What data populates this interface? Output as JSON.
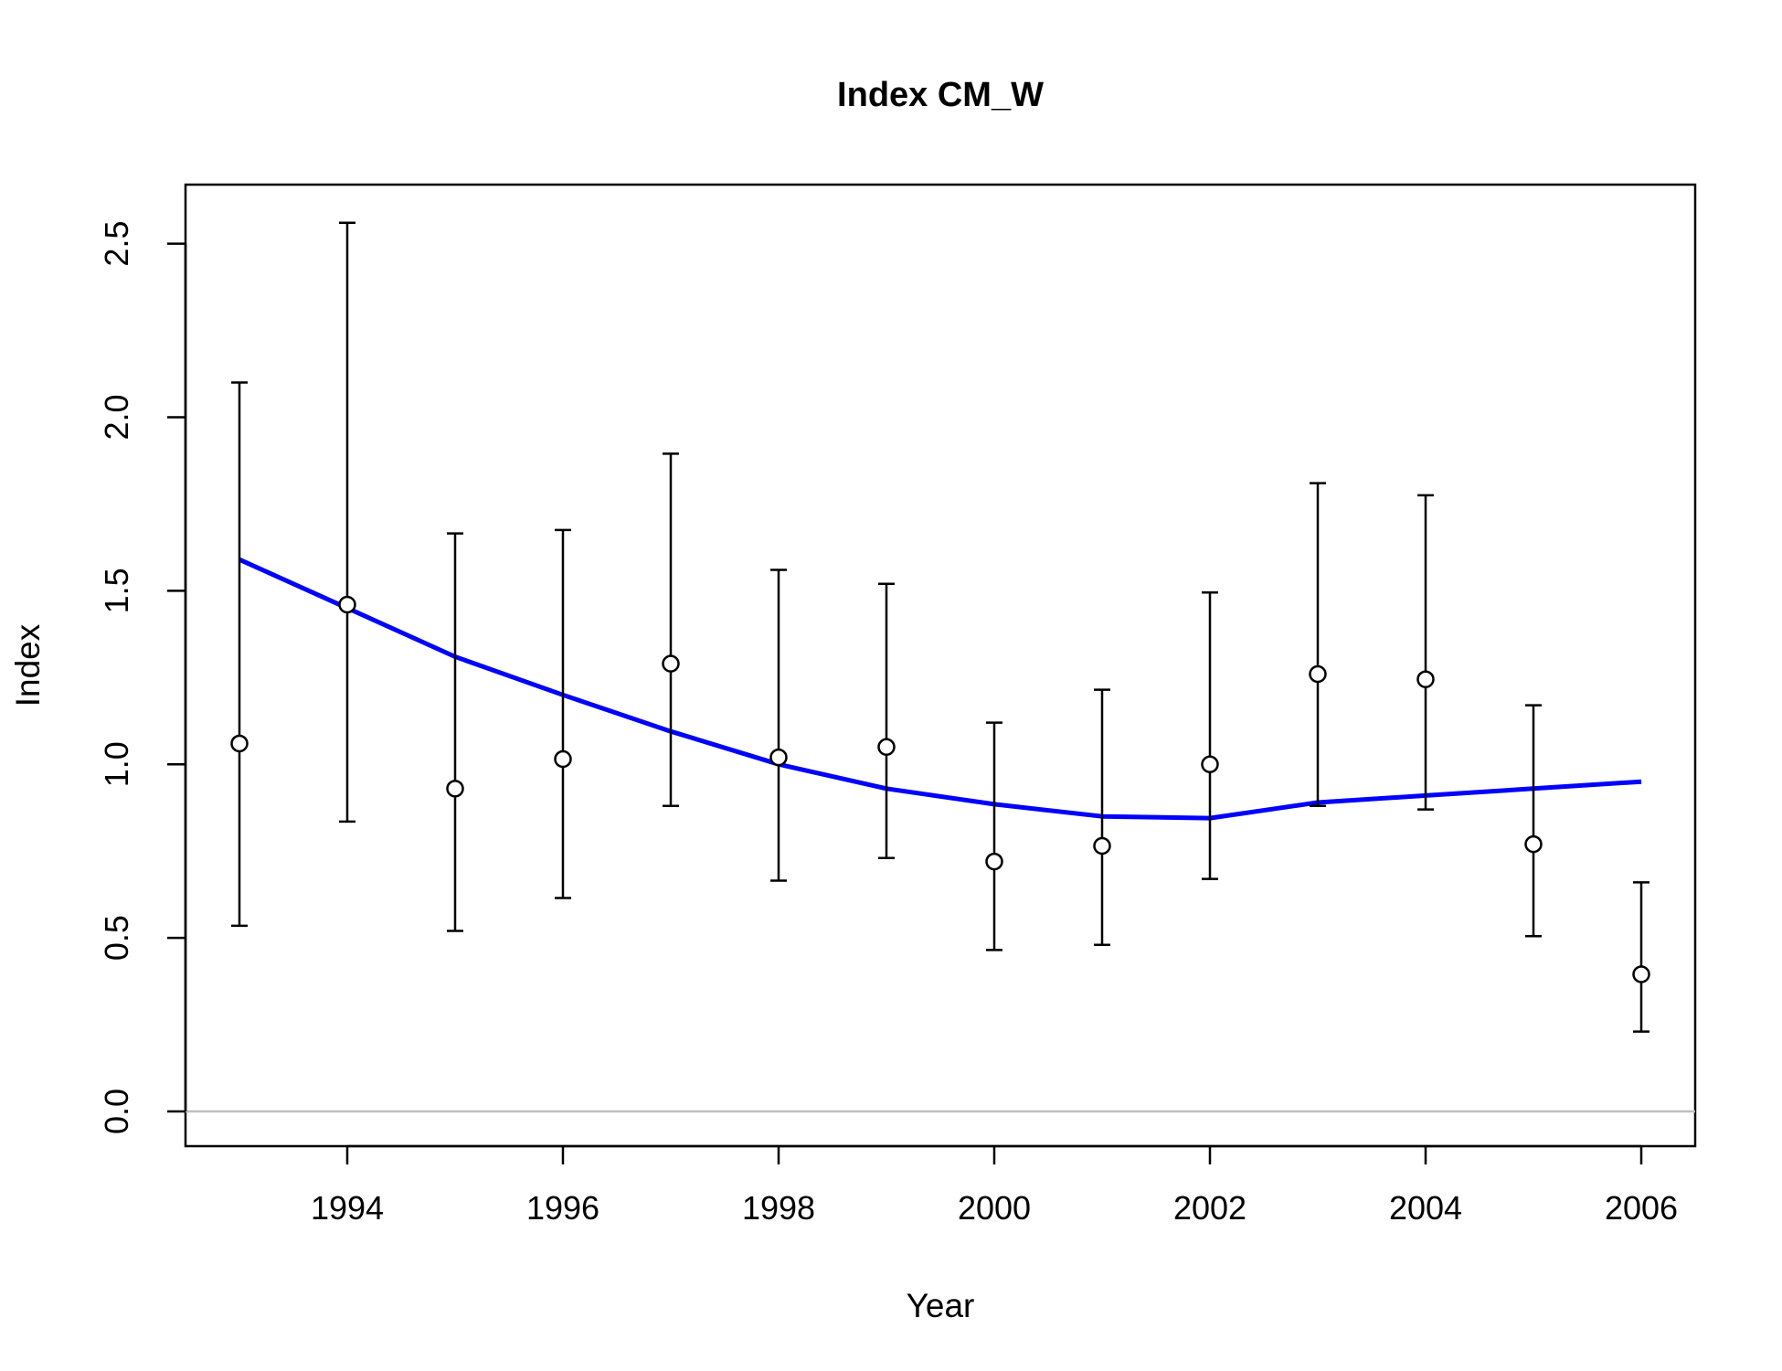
{
  "chart_data": {
    "type": "scatter",
    "title": "Index CM_W",
    "xlabel": "Year",
    "ylabel": "Index",
    "xlim": [
      1992.5,
      2006.5
    ],
    "ylim": [
      -0.1,
      2.67
    ],
    "x_ticks": [
      1994,
      1996,
      1998,
      2000,
      2002,
      2004,
      2006
    ],
    "x_tick_labels": [
      "1994",
      "1996",
      "1998",
      "2000",
      "2002",
      "2004",
      "2006"
    ],
    "y_ticks": [
      0.0,
      0.5,
      1.0,
      1.5,
      2.0,
      2.5
    ],
    "y_tick_labels": [
      "0.0",
      "0.5",
      "1.0",
      "1.5",
      "2.0",
      "2.5"
    ],
    "reference_line": {
      "y": 0,
      "color": "#bebebe"
    },
    "series": [
      {
        "kind": "points_with_error_bars",
        "color": "#000000",
        "x": [
          1993,
          1994,
          1995,
          1996,
          1997,
          1998,
          1999,
          2000,
          2001,
          2002,
          2003,
          2004,
          2005,
          2006
        ],
        "y": [
          1.06,
          1.46,
          0.93,
          1.015,
          1.29,
          1.02,
          1.05,
          0.72,
          0.765,
          1.0,
          1.26,
          1.245,
          0.77,
          0.395
        ],
        "lower": [
          0.535,
          0.835,
          0.52,
          0.615,
          0.88,
          0.665,
          0.73,
          0.465,
          0.48,
          0.67,
          0.88,
          0.87,
          0.505,
          0.23
        ],
        "upper": [
          2.1,
          2.56,
          1.665,
          1.675,
          1.895,
          1.56,
          1.52,
          1.12,
          1.215,
          1.495,
          1.81,
          1.775,
          1.17,
          0.66
        ]
      },
      {
        "kind": "line",
        "color": "#0000ff",
        "x": [
          1993,
          1994,
          1995,
          1996,
          1997,
          1998,
          1999,
          2000,
          2001,
          2002,
          2003,
          2004,
          2005,
          2006
        ],
        "y": [
          1.59,
          1.45,
          1.31,
          1.2,
          1.095,
          1.0,
          0.93,
          0.885,
          0.85,
          0.845,
          0.89,
          0.91,
          0.93,
          0.95
        ]
      }
    ]
  }
}
